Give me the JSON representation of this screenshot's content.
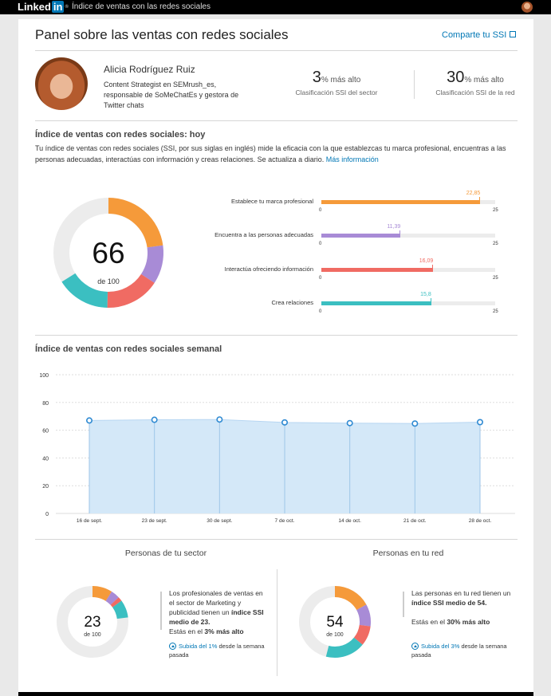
{
  "topbar": {
    "logo_text": "Linked",
    "logo_in": "in",
    "logo_reg": "®",
    "crumb": "Índice de ventas con las redes sociales"
  },
  "header": {
    "title": "Panel sobre las ventas con redes sociales",
    "share_label": "Comparte tu SSI"
  },
  "profile": {
    "name": "Alicia Rodríguez Ruiz",
    "bio": "Content Strategist en SEMrush_es, responsable de SoMeChatEs y gestora de Twitter chats"
  },
  "stats": [
    {
      "value": "3",
      "unit": "% más alto",
      "label": "Clasificación SSI del sector"
    },
    {
      "value": "30",
      "unit": "% más alto",
      "label": "Clasificación SSI de la red"
    }
  ],
  "today": {
    "heading": "Índice de ventas con redes sociales: hoy",
    "description": "Tu índice de ventas con redes sociales (SSI, por sus siglas en inglés) mide la eficacia con la que establezcas tu marca profesional, encuentras a las personas adecuadas, interactúas con información y creas relaciones. Se actualiza a diario.",
    "more_link": "Más información",
    "score": "66",
    "score_of": "de 100"
  },
  "colors": {
    "orange": "#f59a3a",
    "purple": "#a88bd6",
    "red": "#f06b63",
    "teal": "#3bbfc1",
    "track": "#ececec",
    "blue": "#2f8ad2",
    "area": "#d4e8f8"
  },
  "chart_data": [
    {
      "type": "bar",
      "categories": [
        "Establece tu marca profesional",
        "Encuentra a las personas adecuadas",
        "Interactúa ofreciendo información",
        "Crea relaciones"
      ],
      "values": [
        22.85,
        11.39,
        16.09,
        15.8
      ],
      "value_labels": [
        "22,85",
        "11,39",
        "16,09",
        "15,8"
      ],
      "xlim": [
        0,
        25
      ],
      "tick_labels": [
        "0",
        "25"
      ]
    },
    {
      "type": "area",
      "title": "Índice de ventas con redes sociales semanal",
      "x": [
        "16 de sept.",
        "23 de sept.",
        "30 de sept.",
        "7 de oct.",
        "14 de oct.",
        "21 de oct.",
        "28 de oct."
      ],
      "values": [
        67,
        67.5,
        67.7,
        65.6,
        65.1,
        64.8,
        65.8
      ],
      "ylim": [
        0,
        100
      ],
      "yticks": [
        "0",
        "20",
        "40",
        "60",
        "80",
        "100"
      ]
    }
  ],
  "peers": [
    {
      "heading": "Personas de tu sector",
      "score": "23",
      "score_of": "de 100",
      "segments": [
        9,
        4,
        2,
        8
      ],
      "text_pre": "Los profesionales de ventas en el sector de Marketing y publicidad tienen un ",
      "text_bold": "índice SSI medio de 23.",
      "rank_pre": "Estás en el ",
      "rank_bold": "3% más alto",
      "trend_link": "Subida del 1%",
      "trend_rest": "desde la semana pasada"
    },
    {
      "heading": "Personas en tu red",
      "score": "54",
      "score_of": "de 100",
      "segments": [
        17,
        10,
        9,
        18
      ],
      "text_pre": "Las personas en tu red tienen un ",
      "text_bold": "índice SSI medio de 54.",
      "rank_pre": "Estás en el ",
      "rank_bold": "30% más alto",
      "trend_link": "Subida del 3%",
      "trend_rest": "desde la semana pasada"
    }
  ]
}
